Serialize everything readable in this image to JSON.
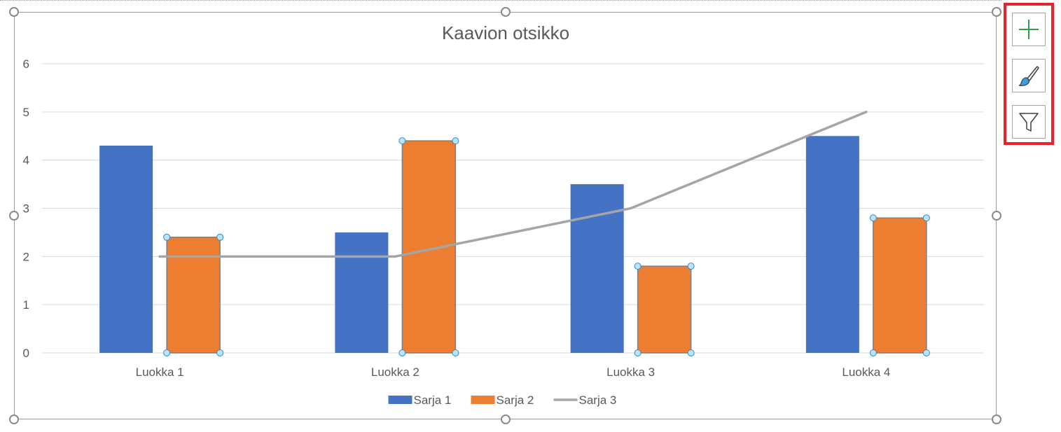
{
  "chart_data": {
    "type": "bar",
    "title": "Kaavion otsikko",
    "categories": [
      "Luokka 1",
      "Luokka 2",
      "Luokka 3",
      "Luokka 4"
    ],
    "series": [
      {
        "name": "Sarja 1",
        "type": "bar",
        "color": "#4472C4",
        "values": [
          4.3,
          2.5,
          3.5,
          4.5
        ]
      },
      {
        "name": "Sarja 2",
        "type": "bar",
        "color": "#ED7D31",
        "values": [
          2.4,
          4.4,
          1.8,
          2.8
        ],
        "selected": true
      },
      {
        "name": "Sarja 3",
        "type": "line",
        "color": "#A5A5A5",
        "values": [
          2,
          2,
          3,
          5
        ]
      }
    ],
    "ylim": [
      0,
      6
    ],
    "yticks": [
      0,
      1,
      2,
      3,
      4,
      5,
      6
    ],
    "grid": true,
    "legend": "bottom"
  },
  "side_tools": [
    {
      "name": "chart-elements-button",
      "icon": "plus-icon"
    },
    {
      "name": "chart-styles-button",
      "icon": "paintbrush-icon"
    },
    {
      "name": "chart-filters-button",
      "icon": "funnel-icon"
    }
  ]
}
